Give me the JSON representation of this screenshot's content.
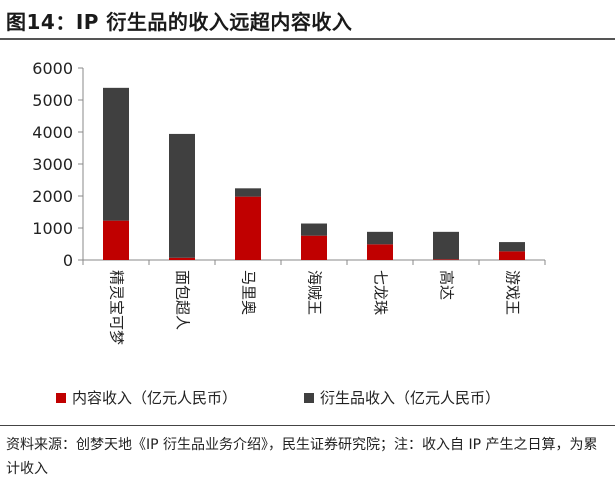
{
  "title": "图14：IP 衍生品的收入远超内容收入",
  "chart_data": {
    "type": "bar",
    "stacked": true,
    "categories": [
      "精灵宝可梦",
      "面包超人",
      "马里奥",
      "海贼王",
      "七龙珠",
      "高达",
      "游戏王"
    ],
    "series": [
      {
        "name": "内容收入（亿元人民币）",
        "color": "#c00000",
        "values": [
          1230,
          70,
          1980,
          760,
          490,
          20,
          270
        ]
      },
      {
        "name": "衍生品收入（亿元人民币）",
        "color": "#404040",
        "values": [
          4150,
          3870,
          260,
          380,
          390,
          860,
          290
        ]
      }
    ],
    "ylim": [
      0,
      6000
    ],
    "yticks": [
      0,
      1000,
      2000,
      3000,
      4000,
      5000,
      6000
    ],
    "xlabel": "",
    "ylabel": ""
  },
  "source": "资料来源：创梦天地《IP 衍生品业务介绍》，民生证券研究院；注：收入自 IP 产生之日算，为累计收入"
}
